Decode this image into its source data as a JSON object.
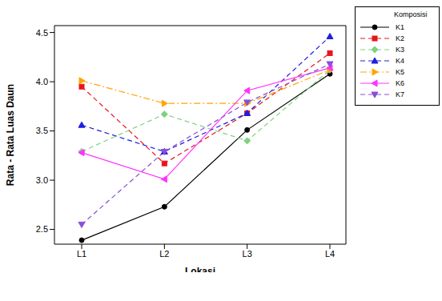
{
  "chart_data": {
    "type": "line",
    "x_label": "Lokasi",
    "y_label": "Rata - Rata Luas Daun",
    "legend_title": "Komposisi",
    "legend": "right",
    "categories": [
      "L1",
      "L2",
      "L3",
      "L4"
    ],
    "ylim": [
      2.35,
      4.57
    ],
    "yticks": [
      2.5,
      {
        "value": 3,
        "label": "3.0"
      },
      3.5,
      {
        "value": 4,
        "label": "4.0"
      },
      4.5
    ],
    "series": [
      {
        "name": "K1",
        "color": "#000000",
        "marker": "circle",
        "line_style": "solid",
        "values": [
          2.39,
          2.73,
          3.51,
          4.08
        ]
      },
      {
        "name": "K2",
        "color": "#e8151b",
        "marker": "square",
        "line_style": "dashed",
        "values": [
          3.95,
          3.17,
          3.68,
          4.29
        ]
      },
      {
        "name": "K3",
        "color": "#7fd17f",
        "marker": "diamond",
        "line_style": "dashed",
        "values": [
          3.29,
          3.67,
          3.4,
          4.12
        ]
      },
      {
        "name": "K4",
        "color": "#1f1fe0",
        "marker": "triangle-up",
        "line_style": "dashed",
        "values": [
          3.56,
          3.29,
          3.68,
          4.46
        ]
      },
      {
        "name": "K5",
        "color": "#ffa500",
        "marker": "triangle-right",
        "line_style": "dashdot",
        "values": [
          4.01,
          3.78,
          3.78,
          4.12
        ]
      },
      {
        "name": "K6",
        "color": "#ff33ff",
        "marker": "triangle-left",
        "line_style": "solid",
        "values": [
          3.28,
          3.01,
          3.91,
          4.14
        ]
      },
      {
        "name": "K7",
        "color": "#8a4fd6",
        "marker": "triangle-down",
        "line_style": "dashed",
        "values": [
          2.55,
          3.29,
          3.79,
          4.18
        ]
      }
    ]
  }
}
